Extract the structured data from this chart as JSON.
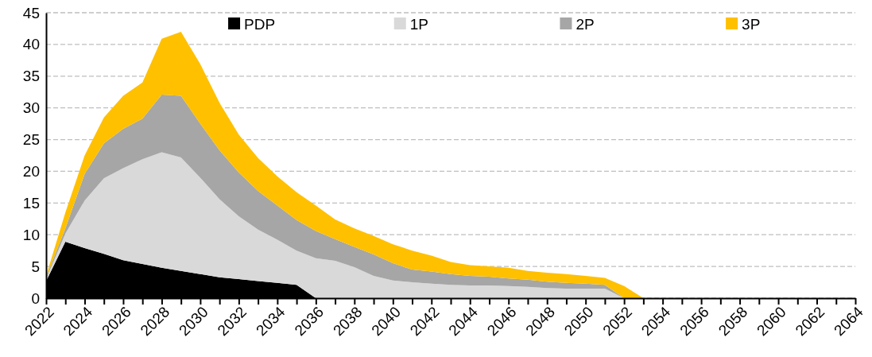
{
  "chart_data": {
    "type": "area",
    "stacked": true,
    "x": [
      2022,
      2023,
      2024,
      2025,
      2026,
      2027,
      2028,
      2029,
      2030,
      2031,
      2032,
      2033,
      2034,
      2035,
      2036,
      2037,
      2038,
      2039,
      2040,
      2041,
      2042,
      2043,
      2044,
      2045,
      2046,
      2047,
      2048,
      2049,
      2050,
      2051,
      2052,
      2053,
      2054,
      2055,
      2056,
      2057,
      2058,
      2059,
      2060,
      2061,
      2062,
      2063,
      2064
    ],
    "series": [
      {
        "name": "PDP",
        "color": "#000000",
        "values": [
          2.7,
          8.9,
          7.9,
          7.0,
          6.0,
          5.4,
          4.8,
          4.3,
          3.8,
          3.3,
          3.0,
          2.7,
          2.4,
          2.1,
          0,
          0,
          0,
          0,
          0,
          0,
          0,
          0,
          0,
          0,
          0,
          0,
          0,
          0,
          0,
          0,
          0,
          0,
          0,
          0,
          0,
          0,
          0,
          0,
          0,
          0,
          0,
          0,
          0
        ]
      },
      {
        "name": "1P",
        "color": "#d9d9d9",
        "values": [
          0.3,
          1.3,
          7.5,
          11.9,
          14.5,
          16.5,
          18.2,
          17.9,
          15.2,
          12.3,
          9.9,
          8.1,
          6.8,
          5.4,
          6.3,
          5.9,
          4.9,
          3.5,
          2.8,
          2.5,
          2.3,
          2.1,
          2.0,
          2.0,
          1.9,
          1.8,
          1.6,
          1.5,
          1.5,
          1.5,
          0,
          0,
          0,
          0,
          0,
          0,
          0,
          0,
          0,
          0,
          0,
          0,
          0
        ]
      },
      {
        "name": "2P",
        "color": "#a6a6a6",
        "values": [
          0.3,
          0.8,
          4.2,
          5.5,
          6.2,
          6.4,
          9.1,
          9.7,
          8.5,
          7.7,
          6.9,
          6.1,
          5.4,
          4.8,
          4.3,
          3.4,
          3.2,
          3.4,
          2.7,
          2.0,
          1.9,
          1.7,
          1.5,
          1.4,
          1.2,
          1.1,
          1.0,
          0.9,
          0.8,
          0.6,
          0,
          0,
          0,
          0,
          0,
          0,
          0,
          0,
          0,
          0,
          0,
          0,
          0
        ]
      },
      {
        "name": "3P",
        "color": "#ffc000",
        "values": [
          0.2,
          2.5,
          2.9,
          4.1,
          5.2,
          5.7,
          8.8,
          10.1,
          9.4,
          7.5,
          6.0,
          5.2,
          4.6,
          4.4,
          4.0,
          3.1,
          2.9,
          2.9,
          3.0,
          3.0,
          2.5,
          1.9,
          1.7,
          1.6,
          1.7,
          1.4,
          1.4,
          1.4,
          1.2,
          1.1,
          1.9,
          0,
          0,
          0,
          0,
          0,
          0,
          0,
          0,
          0,
          0,
          0,
          0
        ]
      }
    ],
    "xlim": [
      2022,
      2064
    ],
    "xticks": [
      2022,
      {
        "value": 2023,
        "label": null
      },
      2024,
      {
        "value": 2025,
        "label": null
      },
      2026,
      {
        "value": 2027,
        "label": null
      },
      2028,
      {
        "value": 2029,
        "label": null
      },
      2030,
      {
        "value": 2031,
        "label": null
      },
      2032,
      {
        "value": 2033,
        "label": null
      },
      2034,
      {
        "value": 2035,
        "label": null
      },
      2036,
      {
        "value": 2037,
        "label": null
      },
      2038,
      {
        "value": 2039,
        "label": null
      },
      2040,
      {
        "value": 2041,
        "label": null
      },
      2042,
      {
        "value": 2043,
        "label": null
      },
      2044,
      {
        "value": 2045,
        "label": null
      },
      2046,
      {
        "value": 2047,
        "label": null
      },
      2048,
      {
        "value": 2049,
        "label": null
      },
      2050,
      {
        "value": 2051,
        "label": null
      },
      2052,
      {
        "value": 2053,
        "label": null
      },
      2054,
      {
        "value": 2055,
        "label": null
      },
      2056,
      {
        "value": 2057,
        "label": null
      },
      2058,
      {
        "value": 2059,
        "label": null
      },
      2060,
      {
        "value": 2061,
        "label": null
      },
      2062,
      {
        "value": 2063,
        "label": null
      },
      2064
    ],
    "ylim": [
      0,
      45
    ],
    "yticks": [
      0,
      5,
      10,
      15,
      20,
      25,
      30,
      35,
      40,
      45
    ],
    "grid": "y",
    "legend": "top"
  }
}
